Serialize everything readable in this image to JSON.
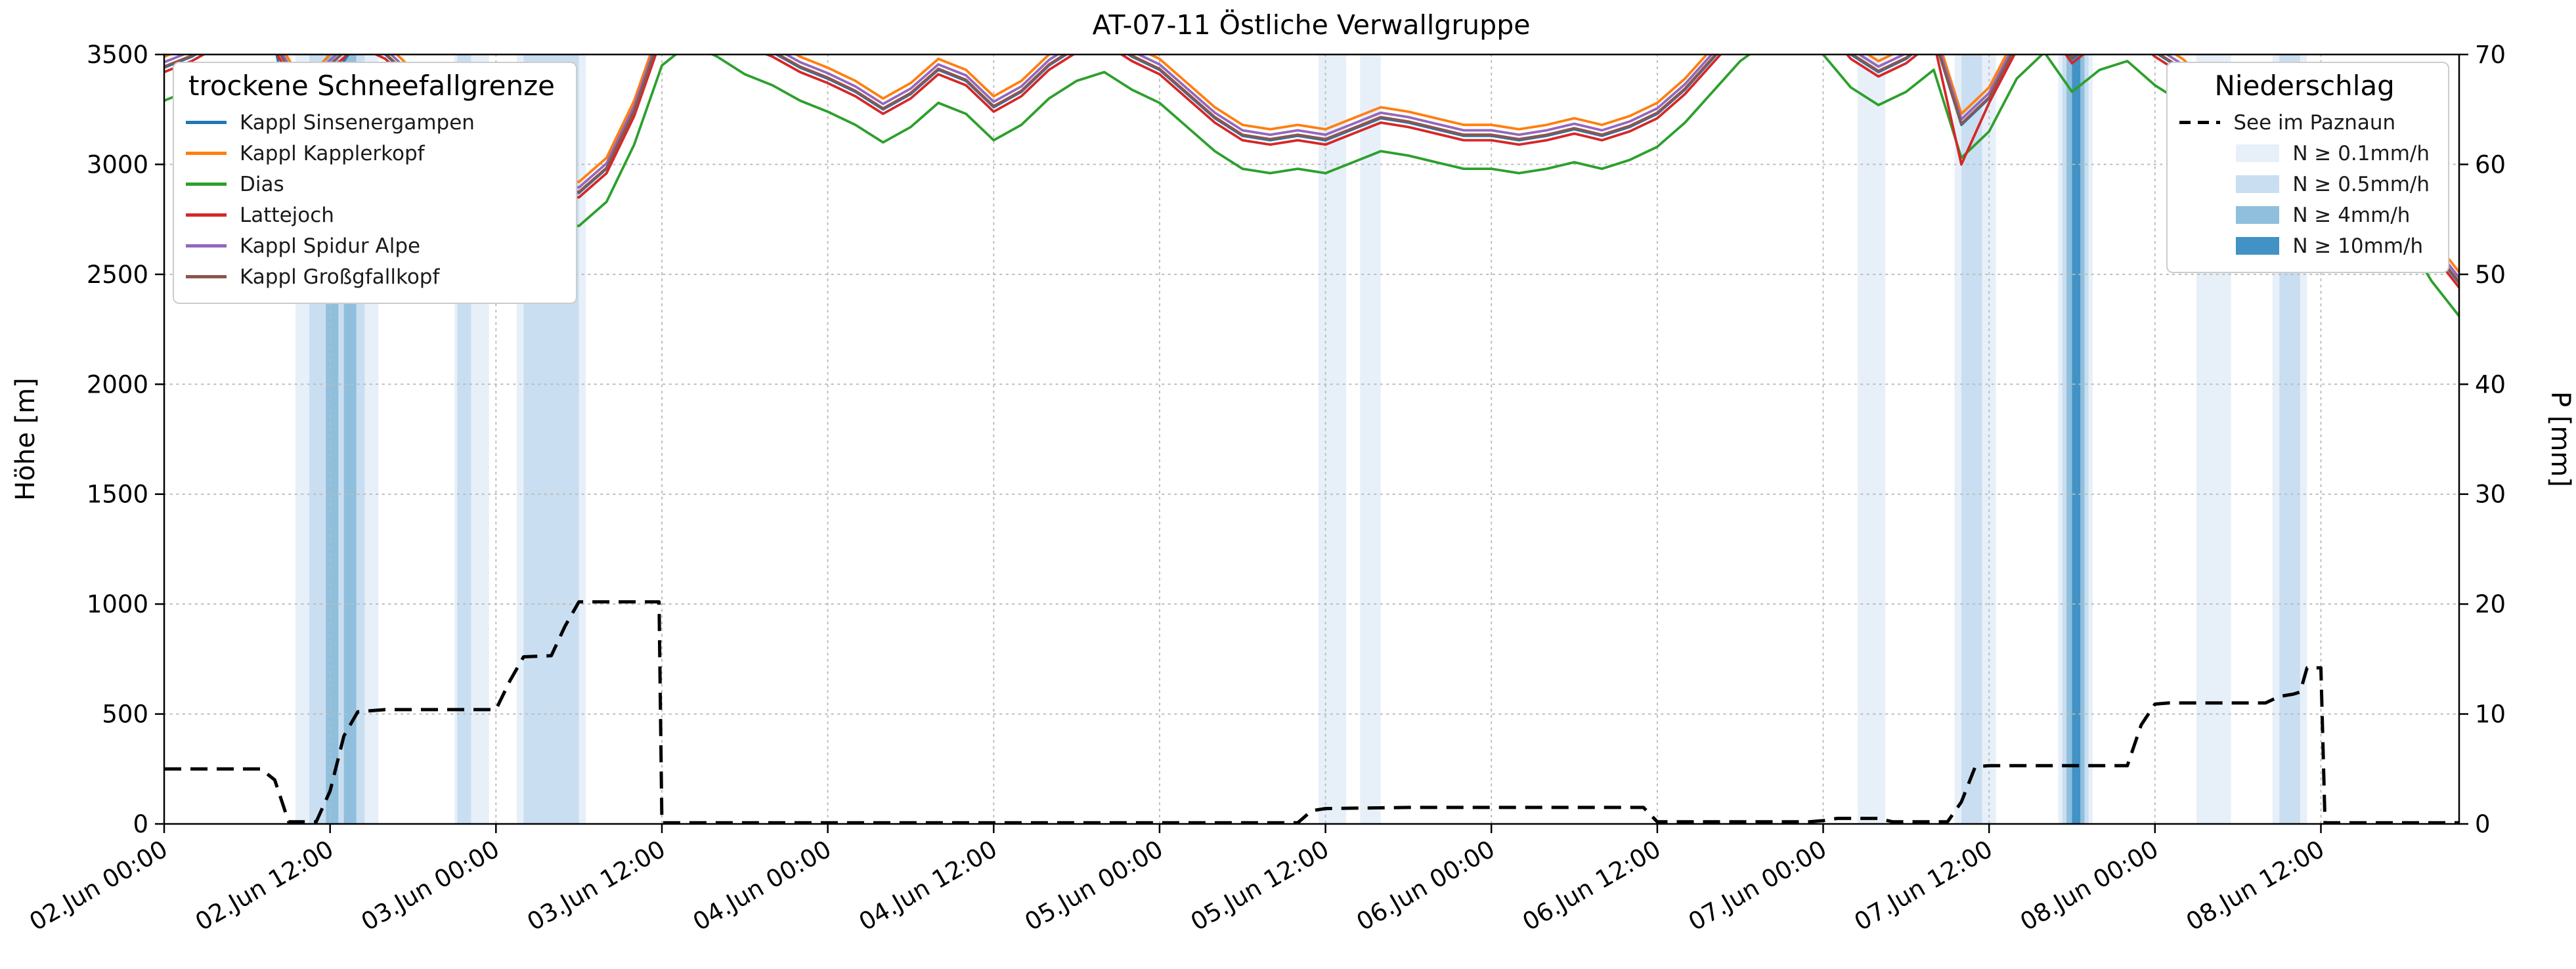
{
  "title": "AT-07-11 Östliche Verwallgruppe",
  "axes": {
    "y_left": {
      "label": "Höhe [m]",
      "min": 0,
      "max": 3500,
      "ticks": [
        0,
        500,
        1000,
        1500,
        2000,
        2500,
        3000,
        3500
      ]
    },
    "y_right": {
      "label": "P [mm]",
      "min": 0,
      "max": 70,
      "ticks": [
        0,
        10,
        20,
        30,
        40,
        50,
        60,
        70
      ]
    },
    "x": {
      "min_hour": 0,
      "max_hour": 166,
      "start_label": "02.Jun 00:00",
      "tick_hours": [
        0,
        12,
        24,
        36,
        48,
        60,
        72,
        84,
        96,
        108,
        120,
        132,
        144,
        156
      ],
      "tick_labels": [
        "02.Jun 00:00",
        "02.Jun 12:00",
        "03.Jun 00:00",
        "03.Jun 12:00",
        "04.Jun 00:00",
        "04.Jun 12:00",
        "05.Jun 00:00",
        "05.Jun 12:00",
        "06.Jun 00:00",
        "06.Jun 12:00",
        "07.Jun 00:00",
        "07.Jun 12:00",
        "08.Jun 00:00",
        "08.Jun 12:00"
      ]
    }
  },
  "legend_lines": {
    "title": "trockene Schneefallgrenze",
    "entries": [
      {
        "label": "Kappl Sinsenergampen",
        "color": "#1f77b4"
      },
      {
        "label": "Kappl Kapplerkopf",
        "color": "#ff7f0e"
      },
      {
        "label": "Dias",
        "color": "#2ca02c"
      },
      {
        "label": "Lattejoch",
        "color": "#d62728"
      },
      {
        "label": "Kappl Spidur Alpe",
        "color": "#9467bd"
      },
      {
        "label": "Kappl Großgfallkopf",
        "color": "#8c564b"
      }
    ]
  },
  "legend_precip": {
    "title": "Niederschlag",
    "line_entry": {
      "label": "See im Paznaun",
      "color": "#000000"
    },
    "band_entries": [
      {
        "label": "N ≥ 0.1mm/h",
        "level": "0.1"
      },
      {
        "label": "N ≥ 0.5mm/h",
        "level": "0.5"
      },
      {
        "label": "N ≥ 4mm/h",
        "level": "4"
      },
      {
        "label": "N ≥ 10mm/h",
        "level": "10"
      }
    ]
  },
  "chart_data": {
    "type": "line",
    "x_unit": "hours since 02.Jun 00:00",
    "x_hours": [
      0,
      2,
      4,
      6,
      8,
      10,
      12,
      14,
      16,
      18,
      20,
      22,
      24,
      26,
      28,
      30,
      32,
      34,
      36,
      38,
      40,
      42,
      44,
      46,
      48,
      50,
      52,
      54,
      56,
      58,
      60,
      62,
      64,
      66,
      68,
      70,
      72,
      74,
      76,
      78,
      80,
      82,
      84,
      86,
      88,
      90,
      92,
      94,
      96,
      98,
      100,
      102,
      104,
      106,
      108,
      110,
      112,
      114,
      116,
      118,
      120,
      122,
      124,
      126,
      128,
      130,
      132,
      134,
      136,
      138,
      140,
      142,
      144,
      146,
      148,
      150,
      152,
      154,
      156,
      158,
      160,
      162,
      164,
      166
    ],
    "y_unit_left": "m",
    "ylim_left": [
      0,
      3500
    ],
    "ylim_right": [
      0,
      70
    ],
    "grid": true,
    "series": [
      {
        "name": "Kappl Sinsenergampen",
        "color": "#1f77b4",
        "values": [
          3440,
          3490,
          3560,
          3600,
          3540,
          2950,
          3380,
          3560,
          3500,
          3380,
          3160,
          3030,
          2990,
          2930,
          2890,
          2870,
          2980,
          3240,
          3600,
          3700,
          3640,
          3560,
          3510,
          3440,
          3390,
          3330,
          3250,
          3320,
          3430,
          3380,
          3260,
          3330,
          3450,
          3530,
          3570,
          3490,
          3430,
          3320,
          3210,
          3130,
          3110,
          3130,
          3110,
          3160,
          3210,
          3190,
          3160,
          3130,
          3130,
          3110,
          3130,
          3160,
          3130,
          3170,
          3230,
          3340,
          3480,
          3620,
          3710,
          3710,
          3650,
          3500,
          3420,
          3480,
          3580,
          3180,
          3300,
          3540,
          3660,
          3480,
          3580,
          3620,
          3510,
          3430,
          3320,
          3300,
          3370,
          3330,
          3320,
          3210,
          3030,
          2830,
          2620,
          2460
        ]
      },
      {
        "name": "Kappl Kapplerkopf",
        "color": "#ff7f0e",
        "values": [
          3490,
          3540,
          3610,
          3650,
          3590,
          3370,
          3500,
          3610,
          3550,
          3430,
          3210,
          3080,
          3040,
          2980,
          2940,
          2920,
          3030,
          3290,
          3650,
          3750,
          3690,
          3610,
          3560,
          3490,
          3440,
          3380,
          3300,
          3370,
          3480,
          3430,
          3310,
          3380,
          3500,
          3580,
          3620,
          3540,
          3480,
          3370,
          3260,
          3180,
          3160,
          3180,
          3160,
          3210,
          3260,
          3240,
          3210,
          3180,
          3180,
          3160,
          3180,
          3210,
          3180,
          3220,
          3280,
          3390,
          3530,
          3670,
          3760,
          3760,
          3700,
          3550,
          3470,
          3530,
          3630,
          3230,
          3350,
          3590,
          3710,
          3530,
          3630,
          3670,
          3560,
          3480,
          3370,
          3350,
          3420,
          3380,
          3370,
          3260,
          3080,
          2880,
          2670,
          2510
        ]
      },
      {
        "name": "Dias",
        "color": "#2ca02c",
        "values": [
          3290,
          3340,
          3410,
          3450,
          3390,
          3170,
          3300,
          3410,
          3350,
          3230,
          3010,
          2880,
          2840,
          2780,
          2740,
          2720,
          2830,
          3090,
          3450,
          3550,
          3490,
          3410,
          3360,
          3290,
          3240,
          3180,
          3100,
          3170,
          3280,
          3230,
          3110,
          3180,
          3300,
          3380,
          3420,
          3340,
          3280,
          3170,
          3060,
          2980,
          2960,
          2980,
          2960,
          3010,
          3060,
          3040,
          3010,
          2980,
          2980,
          2960,
          2980,
          3010,
          2980,
          3020,
          3080,
          3190,
          3330,
          3470,
          3560,
          3560,
          3500,
          3350,
          3270,
          3330,
          3430,
          3030,
          3150,
          3390,
          3510,
          3330,
          3430,
          3470,
          3360,
          3280,
          3170,
          3150,
          3220,
          3180,
          3170,
          3060,
          2880,
          2680,
          2470,
          2310
        ]
      },
      {
        "name": "Lattejoch",
        "color": "#d62728",
        "values": [
          3420,
          3470,
          3540,
          3580,
          3520,
          3300,
          3430,
          3540,
          3480,
          3360,
          3140,
          3010,
          2970,
          2910,
          2870,
          2850,
          2960,
          3220,
          3580,
          3680,
          3620,
          3540,
          3490,
          3420,
          3370,
          3310,
          3230,
          3300,
          3410,
          3360,
          3240,
          3310,
          3430,
          3510,
          3550,
          3470,
          3410,
          3300,
          3190,
          3110,
          3090,
          3110,
          3090,
          3140,
          3190,
          3170,
          3140,
          3110,
          3110,
          3090,
          3110,
          3140,
          3110,
          3150,
          3210,
          3320,
          3460,
          3600,
          3690,
          3690,
          3630,
          3480,
          3400,
          3460,
          3560,
          3000,
          3280,
          3520,
          3640,
          3460,
          3560,
          3600,
          3490,
          3410,
          3300,
          3280,
          3350,
          3310,
          3300,
          3190,
          3010,
          2810,
          2600,
          2440
        ]
      },
      {
        "name": "Kappl Spidur Alpe",
        "color": "#9467bd",
        "values": [
          3465,
          3515,
          3585,
          3625,
          3565,
          3345,
          3475,
          3585,
          3525,
          3405,
          3185,
          3055,
          3015,
          2955,
          2915,
          2895,
          3005,
          3265,
          3625,
          3725,
          3665,
          3585,
          3535,
          3465,
          3415,
          3355,
          3275,
          3345,
          3455,
          3405,
          3285,
          3355,
          3475,
          3555,
          3595,
          3515,
          3455,
          3345,
          3235,
          3155,
          3135,
          3155,
          3135,
          3185,
          3235,
          3215,
          3185,
          3155,
          3155,
          3135,
          3155,
          3185,
          3155,
          3195,
          3255,
          3365,
          3505,
          3645,
          3735,
          3735,
          3675,
          3525,
          3445,
          3505,
          3605,
          3205,
          3325,
          3565,
          3685,
          3505,
          3605,
          3645,
          3535,
          3455,
          3345,
          3325,
          3395,
          3355,
          3345,
          3235,
          3055,
          2855,
          2645,
          2485
        ]
      },
      {
        "name": "Kappl Großgfallkopf",
        "color": "#8c564b",
        "values": [
          3445,
          3495,
          3565,
          3605,
          3545,
          3325,
          3455,
          3565,
          3505,
          3385,
          3165,
          3035,
          2995,
          2935,
          2895,
          2875,
          2985,
          3245,
          3605,
          3705,
          3645,
          3565,
          3515,
          3445,
          3395,
          3335,
          3255,
          3325,
          3435,
          3385,
          3265,
          3335,
          3455,
          3535,
          3575,
          3495,
          3435,
          3325,
          3215,
          3135,
          3115,
          3135,
          3115,
          3165,
          3215,
          3195,
          3165,
          3135,
          3135,
          3115,
          3135,
          3165,
          3135,
          3175,
          3235,
          3345,
          3485,
          3625,
          3715,
          3715,
          3655,
          3505,
          3425,
          3485,
          3585,
          3185,
          3305,
          3545,
          3665,
          3485,
          3585,
          3625,
          3515,
          3435,
          3325,
          3305,
          3375,
          3335,
          3325,
          3215,
          3035,
          2835,
          2625,
          2465
        ]
      }
    ],
    "precip_line": {
      "name": "See im Paznaun",
      "color": "#000000",
      "style": "dashed",
      "unit": "mm",
      "points": [
        [
          0,
          5
        ],
        [
          7,
          5
        ],
        [
          8,
          4
        ],
        [
          9,
          0.2
        ],
        [
          11,
          0.2
        ],
        [
          12,
          3
        ],
        [
          13,
          8
        ],
        [
          14,
          10.2
        ],
        [
          16,
          10.4
        ],
        [
          24,
          10.4
        ],
        [
          25,
          13
        ],
        [
          26,
          15.2
        ],
        [
          28,
          15.3
        ],
        [
          29,
          18
        ],
        [
          30,
          20.2
        ],
        [
          35.8,
          20.2
        ],
        [
          36,
          0.1
        ],
        [
          82,
          0.1
        ],
        [
          83,
          1.2
        ],
        [
          84,
          1.4
        ],
        [
          90,
          1.5
        ],
        [
          107,
          1.5
        ],
        [
          108,
          0.2
        ],
        [
          119,
          0.2
        ],
        [
          120,
          0.3
        ],
        [
          121,
          0.5
        ],
        [
          124,
          0.5
        ],
        [
          125,
          0.2
        ],
        [
          129,
          0.2
        ],
        [
          130,
          2
        ],
        [
          131,
          5.2
        ],
        [
          132,
          5.3
        ],
        [
          142,
          5.3
        ],
        [
          143,
          9
        ],
        [
          144,
          10.9
        ],
        [
          145,
          11
        ],
        [
          152,
          11
        ],
        [
          153,
          11.6
        ],
        [
          154,
          11.8
        ],
        [
          154.5,
          12
        ],
        [
          155,
          14.2
        ],
        [
          156,
          14.2
        ],
        [
          156.3,
          0.1
        ],
        [
          166,
          0.1
        ]
      ]
    },
    "band_colors": {
      "0.1": "#e7f0f9",
      "0.5": "#c9def0",
      "4": "#8fbfdd",
      "10": "#4292c6"
    },
    "precip_bands": [
      {
        "start": 9.5,
        "end": 15.5,
        "level": "0.1"
      },
      {
        "start": 10.5,
        "end": 14.5,
        "level": "0.5"
      },
      {
        "start": 11.7,
        "end": 12.6,
        "level": "4"
      },
      {
        "start": 13.0,
        "end": 13.9,
        "level": "4"
      },
      {
        "start": 21.0,
        "end": 23.5,
        "level": "0.1"
      },
      {
        "start": 21.2,
        "end": 22.2,
        "level": "0.5"
      },
      {
        "start": 25.5,
        "end": 30.5,
        "level": "0.1"
      },
      {
        "start": 26.0,
        "end": 30.0,
        "level": "0.5"
      },
      {
        "start": 83.5,
        "end": 85.5,
        "level": "0.1"
      },
      {
        "start": 86.5,
        "end": 88.0,
        "level": "0.1"
      },
      {
        "start": 122.5,
        "end": 124.5,
        "level": "0.1"
      },
      {
        "start": 129.5,
        "end": 132.5,
        "level": "0.1"
      },
      {
        "start": 130.0,
        "end": 131.5,
        "level": "0.5"
      },
      {
        "start": 137.0,
        "end": 139.5,
        "level": "0.1"
      },
      {
        "start": 137.3,
        "end": 139.2,
        "level": "0.5"
      },
      {
        "start": 137.6,
        "end": 138.9,
        "level": "4"
      },
      {
        "start": 138.0,
        "end": 138.6,
        "level": "10"
      },
      {
        "start": 147.0,
        "end": 149.5,
        "level": "0.1"
      },
      {
        "start": 152.5,
        "end": 155.0,
        "level": "0.1"
      },
      {
        "start": 153.0,
        "end": 154.5,
        "level": "0.5"
      }
    ]
  }
}
